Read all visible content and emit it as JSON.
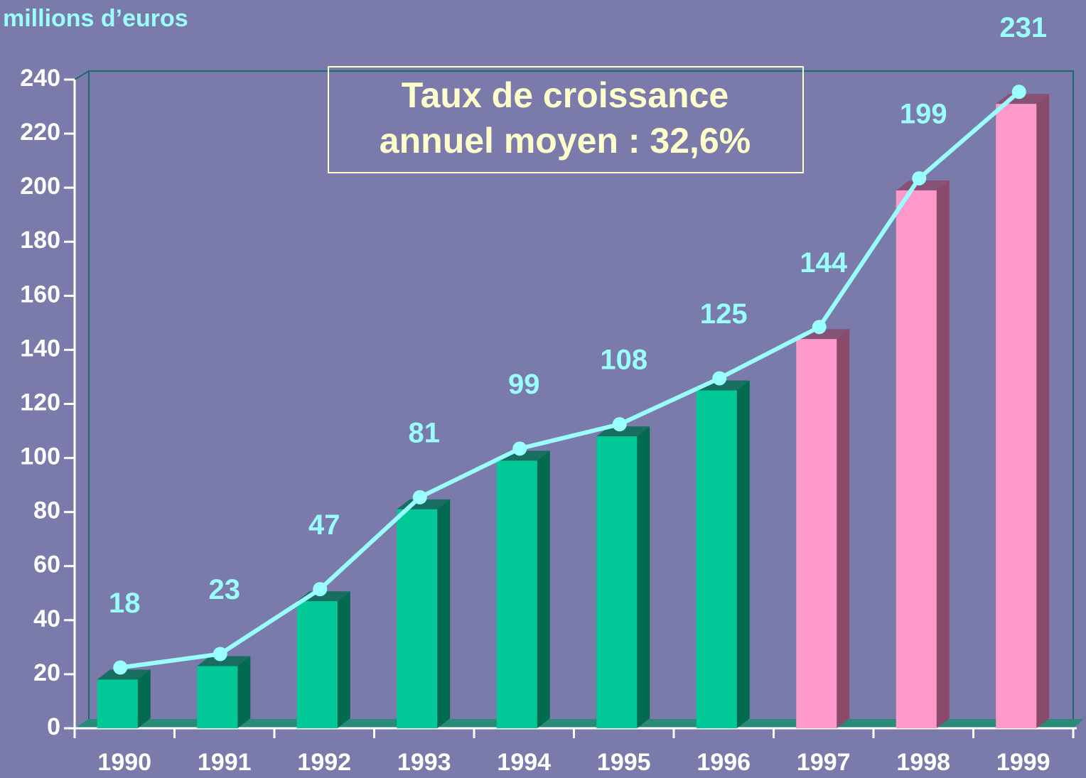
{
  "chart_data": {
    "type": "bar",
    "y_label": "millions d’euros",
    "annotation": [
      "Taux de croissance",
      "annuel moyen : 32,6%"
    ],
    "categories": [
      "1990",
      "1991",
      "1992",
      "1993",
      "1994",
      "1995",
      "1996",
      "1997",
      "1998",
      "1999"
    ],
    "values": [
      18,
      23,
      47,
      81,
      99,
      108,
      125,
      144,
      199,
      231
    ],
    "colors": [
      "#00c896",
      "#00c896",
      "#00c896",
      "#00c896",
      "#00c896",
      "#00c896",
      "#00c896",
      "#ff99cc",
      "#ff99cc",
      "#ff99cc"
    ],
    "side_colors": [
      "#006b4f",
      "#006b4f",
      "#006b4f",
      "#006b4f",
      "#006b4f",
      "#006b4f",
      "#006b4f",
      "#8a4a6a",
      "#8a4a6a",
      "#8a4a6a"
    ],
    "line_color": "#99ffff",
    "ylim": [
      0,
      240
    ],
    "yticks": [
      0,
      20,
      40,
      60,
      80,
      100,
      120,
      140,
      160,
      180,
      200,
      220,
      240
    ],
    "grid": false
  }
}
